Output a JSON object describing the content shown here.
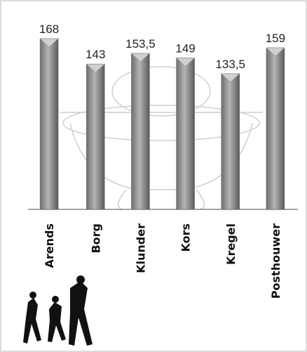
{
  "chart_data": {
    "type": "bar",
    "categories": [
      "Arends",
      "Borg",
      "Klunder",
      "Kors",
      "Kregel",
      "Posthouwer"
    ],
    "values": [
      168,
      143,
      153.5,
      149,
      133.5,
      159
    ],
    "value_labels": [
      "168",
      "143",
      "153,5",
      "149",
      "133,5",
      "159"
    ],
    "color": "#8c8c8c"
  }
}
